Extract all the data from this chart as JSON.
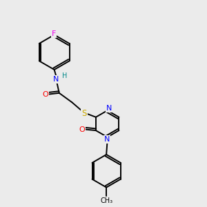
{
  "bg_color": "#ebebeb",
  "bond_color": "#000000",
  "atom_colors": {
    "F": "#ee00ee",
    "N": "#0000ff",
    "O": "#ff0000",
    "S": "#ccaa00",
    "H": "#008888",
    "C": "#000000"
  }
}
